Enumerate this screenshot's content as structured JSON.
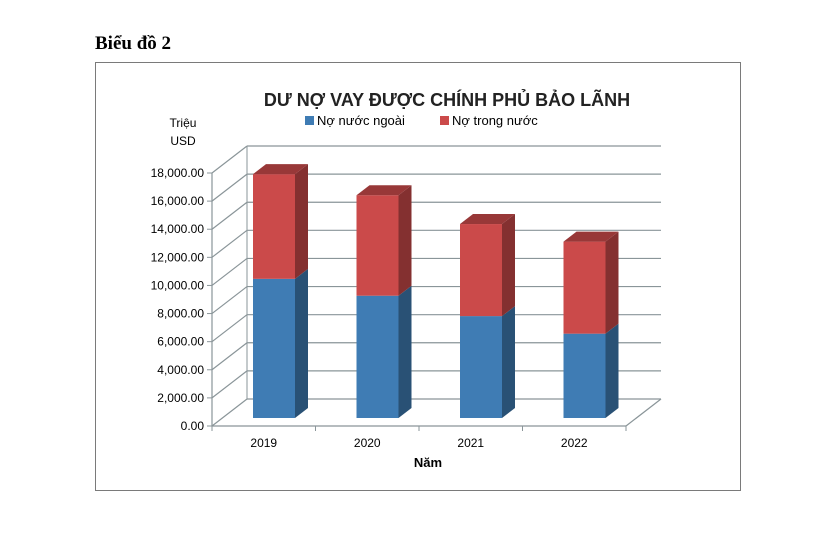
{
  "heading": "Biểu đồ 2",
  "chart_data": {
    "type": "bar",
    "stacked": true,
    "three_d": true,
    "title": "DƯ NỢ VAY ĐƯỢC CHÍNH PHỦ BẢO LÃNH",
    "ylabel": "Triệu USD",
    "xlabel": "Năm",
    "categories": [
      "2019",
      "2020",
      "2021",
      "2022"
    ],
    "ylim": [
      0,
      18000
    ],
    "yticks": [
      "0.00",
      "2,000.00",
      "4,000.00",
      "6,000.00",
      "8,000.00",
      "10,000.00",
      "12,000.00",
      "14,000.00",
      "16,000.00",
      "18,000.00"
    ],
    "grid": true,
    "legend": "top",
    "series": [
      {
        "name": "Nợ nước ngoài",
        "values": [
          9900,
          8700,
          7250,
          6000
        ],
        "color": "#3f7cb4"
      },
      {
        "name": "Nợ trong nước",
        "values": [
          7450,
          7150,
          6550,
          6550
        ],
        "color": "#cb4a4a"
      }
    ]
  }
}
